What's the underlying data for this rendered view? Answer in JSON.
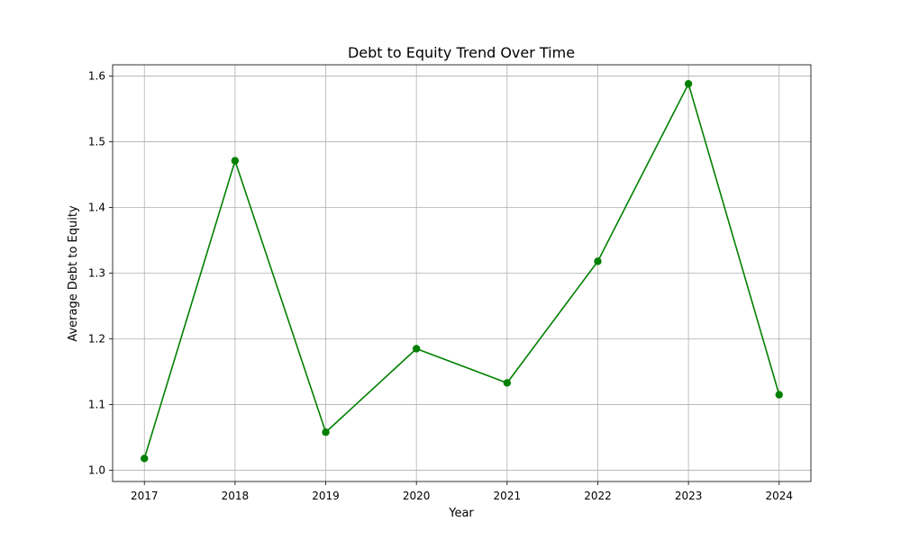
{
  "chart_data": {
    "type": "line",
    "title": "Debt to Equity Trend Over Time",
    "xlabel": "Year",
    "ylabel": "Average Debt to Equity",
    "x": [
      2017,
      2018,
      2019,
      2020,
      2021,
      2022,
      2023,
      2024
    ],
    "x_tick_labels": [
      "2017",
      "2018",
      "2019",
      "2020",
      "2021",
      "2022",
      "2023",
      "2024"
    ],
    "y_ticks": [
      1.0,
      1.1,
      1.2,
      1.3,
      1.4,
      1.5,
      1.6
    ],
    "y_tick_labels": [
      "1.0",
      "1.1",
      "1.2",
      "1.3",
      "1.4",
      "1.5",
      "1.6"
    ],
    "series": [
      {
        "values": [
          1.018,
          1.471,
          1.058,
          1.185,
          1.133,
          1.318,
          1.588,
          1.115
        ],
        "color": "#008000",
        "marker": "circle"
      }
    ],
    "xlim": [
      2016.65,
      2024.35
    ],
    "ylim": [
      0.983,
      1.617
    ],
    "grid": true,
    "grid_color": "#b0b0b0",
    "legend": false
  }
}
